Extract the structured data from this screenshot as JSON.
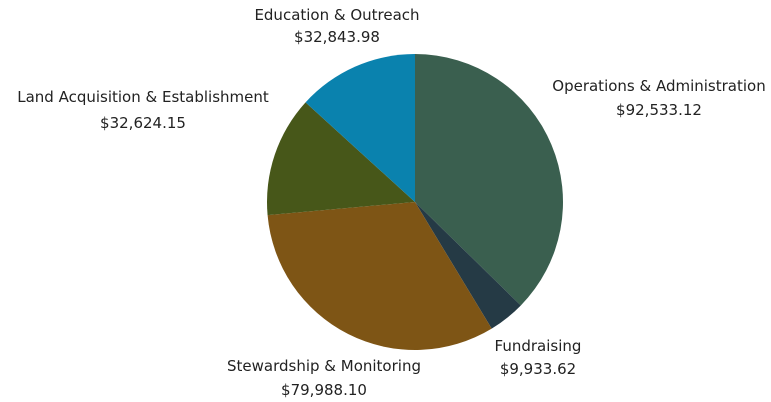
{
  "chart_data": {
    "type": "pie",
    "title": "",
    "start_angle_deg": 0,
    "direction": "clockwise",
    "legend": "none",
    "slices": [
      {
        "label": "Operations & Administration",
        "value": 92533.12,
        "value_label": "$92,533.12",
        "color": "#3A5F4F"
      },
      {
        "label": "Fundraising",
        "value": 9933.62,
        "value_label": "$9,933.62",
        "color": "#253A45"
      },
      {
        "label": "Stewardship & Monitoring",
        "value": 79988.1,
        "value_label": "$79,988.10",
        "color": "#7E5515"
      },
      {
        "label": "Land Acquisition & Establishment",
        "value": 32624.15,
        "value_label": "$32,624.15",
        "color": "#475719"
      },
      {
        "label": "Education & Outreach",
        "value": 32843.98,
        "value_label": "$32,843.98",
        "color": "#0A82AE"
      }
    ]
  }
}
